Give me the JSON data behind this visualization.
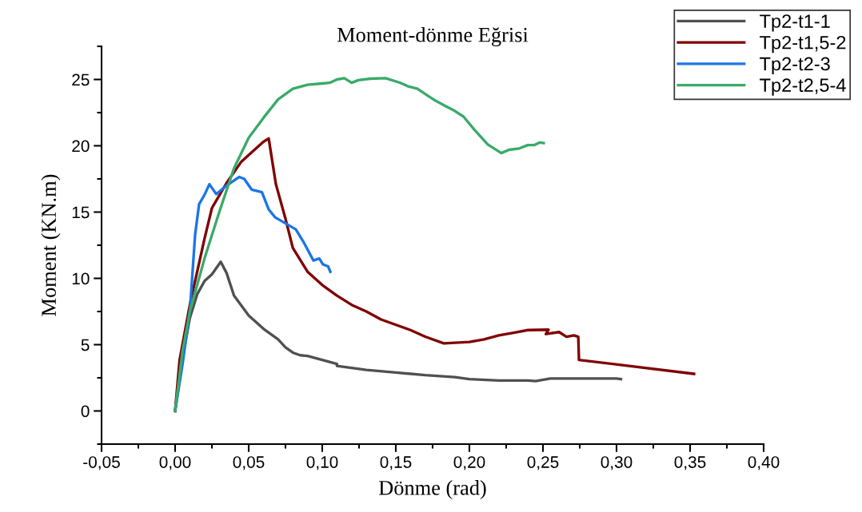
{
  "chart_data": {
    "type": "line",
    "title": "Moment-dönme Eğrisi",
    "xlabel": "Dönme (rad)",
    "ylabel": "Moment (KN.m)",
    "xlim": [
      -0.05,
      0.4
    ],
    "ylim": [
      -2.5,
      27.5
    ],
    "xticks": [
      {
        "value": -0.05,
        "label": "-0,05"
      },
      {
        "value": -0.025,
        "label": null
      },
      {
        "value": 0.0,
        "label": "0,00"
      },
      {
        "value": 0.025,
        "label": null
      },
      {
        "value": 0.05,
        "label": "0,05"
      },
      {
        "value": 0.075,
        "label": null
      },
      {
        "value": 0.1,
        "label": "0,10"
      },
      {
        "value": 0.125,
        "label": null
      },
      {
        "value": 0.15,
        "label": "0,15"
      },
      {
        "value": 0.175,
        "label": null
      },
      {
        "value": 0.2,
        "label": "0,20"
      },
      {
        "value": 0.225,
        "label": null
      },
      {
        "value": 0.25,
        "label": "0,25"
      },
      {
        "value": 0.275,
        "label": null
      },
      {
        "value": 0.3,
        "label": "0,30"
      },
      {
        "value": 0.325,
        "label": null
      },
      {
        "value": 0.35,
        "label": "0,35"
      },
      {
        "value": 0.375,
        "label": null
      },
      {
        "value": 0.4,
        "label": "0,40"
      }
    ],
    "yticks": [
      {
        "value": -2.5,
        "label": null
      },
      0,
      {
        "value": 2.5,
        "label": null
      },
      5,
      {
        "value": 7.5,
        "label": null
      },
      10,
      {
        "value": 12.5,
        "label": null
      },
      15,
      {
        "value": 17.5,
        "label": null
      },
      20,
      {
        "value": 22.5,
        "label": null
      },
      25,
      {
        "value": 27.5,
        "label": null
      }
    ],
    "grid": false,
    "legend": "top right",
    "marker": "none",
    "line_style": "solid",
    "series": [
      {
        "name": "Tp2-t1-1",
        "color": "#505050",
        "x": [
          0,
          0.005,
          0.01,
          0.015,
          0.02,
          0.025,
          0.031,
          0.035,
          0.04,
          0.05,
          0.06,
          0.07,
          0.075,
          0.08,
          0.085,
          0.09,
          0.1,
          0.11,
          0.11,
          0.13,
          0.15,
          0.17,
          0.19,
          0.2,
          0.22,
          0.24,
          0.245,
          0.255,
          0.28,
          0.3,
          0.303
        ],
        "values": [
          0,
          4,
          7,
          8.8,
          9.8,
          10.3,
          11.25,
          10.4,
          8.7,
          7.2,
          6.2,
          5.4,
          4.8,
          4.4,
          4.2,
          4.15,
          3.85,
          3.55,
          3.4,
          3.1,
          2.9,
          2.7,
          2.55,
          2.4,
          2.3,
          2.3,
          2.25,
          2.45,
          2.45,
          2.45,
          2.4
        ]
      },
      {
        "name": "Tp2-t1,5-2",
        "color": "#800000",
        "x": [
          0,
          0.003,
          0.01,
          0.02,
          0.025,
          0.035,
          0.045,
          0.055,
          0.06,
          0.0636,
          0.0685,
          0.075,
          0.08,
          0.09,
          0.1,
          0.11,
          0.12,
          0.13,
          0.14,
          0.16,
          0.17,
          0.1826,
          0.2,
          0.21,
          0.22,
          0.23,
          0.2397,
          0.2538,
          0.252,
          0.261,
          0.266,
          0.271,
          0.274,
          0.2745,
          0.3527
        ],
        "values": [
          0,
          3.8,
          8,
          13,
          15.3,
          17.2,
          18.8,
          19.8,
          20.3,
          20.55,
          17.1,
          14.5,
          12.3,
          10.5,
          9.5,
          8.7,
          8,
          7.5,
          6.9,
          6.1,
          5.6,
          5.1,
          5.2,
          5.4,
          5.7,
          5.9,
          6.1,
          6.13,
          5.8,
          5.95,
          5.6,
          5.7,
          5.6,
          3.85,
          2.8
        ]
      },
      {
        "name": "Tp2-t2-3",
        "color": "#1c75e6",
        "x": [
          0,
          0.005,
          0.01,
          0.0136,
          0.0163,
          0.02,
          0.0233,
          0.028,
          0.035,
          0.0435,
          0.047,
          0.052,
          0.059,
          0.0636,
          0.068,
          0.082,
          0.087,
          0.094,
          0.098,
          0.1005,
          0.104,
          0.1055
        ],
        "values": [
          0,
          3.5,
          7.5,
          13.3,
          15.6,
          16.3,
          17.1,
          16.35,
          17,
          17.65,
          17.5,
          16.7,
          16.5,
          15.2,
          14.6,
          13.7,
          12.8,
          11.35,
          11.5,
          11.05,
          10.9,
          10.5
        ]
      },
      {
        "name": "Tp2-t2,5-4",
        "color": "#3aaa6a",
        "x": [
          0,
          0.005,
          0.01,
          0.02,
          0.03,
          0.04,
          0.05,
          0.06,
          0.07,
          0.08,
          0.09,
          0.1,
          0.105,
          0.11,
          0.115,
          0.12,
          0.1245,
          0.1326,
          0.143,
          0.1527,
          0.158,
          0.1647,
          0.1728,
          0.177,
          0.1837,
          0.189,
          0.196,
          0.2035,
          0.2125,
          0.2217,
          0.227,
          0.234,
          0.2397,
          0.244,
          0.248,
          0.2505
        ],
        "values": [
          0,
          4.5,
          7.5,
          11.5,
          15,
          18.3,
          20.6,
          22.1,
          23.5,
          24.3,
          24.6,
          24.7,
          24.75,
          25.0,
          25.1,
          24.75,
          24.95,
          25.06,
          25.1,
          24.76,
          24.5,
          24.3,
          23.7,
          23.4,
          23.0,
          22.7,
          22.2,
          21.2,
          20.1,
          19.45,
          19.7,
          19.8,
          20.05,
          20.05,
          20.25,
          20.2
        ]
      }
    ]
  }
}
